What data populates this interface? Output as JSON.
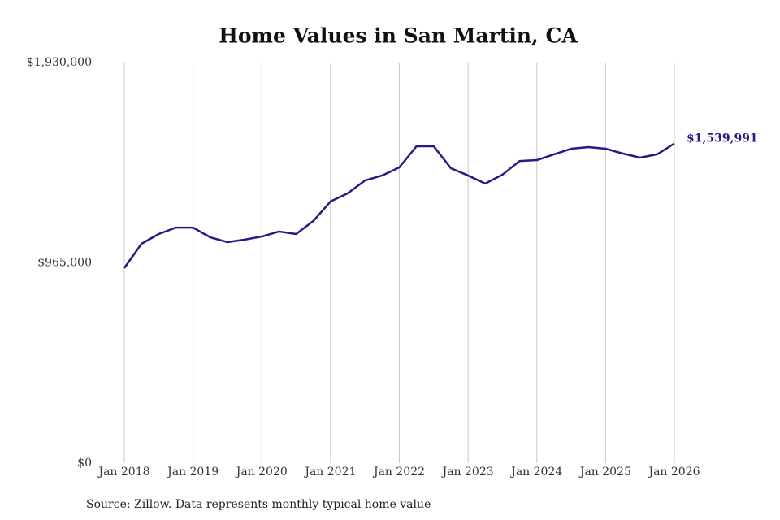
{
  "chart_data": {
    "type": "line",
    "title": "Home Values in San Martin, CA",
    "source": "Source: Zillow. Data represents monthly typical home value",
    "categories": [
      "Jan 2018",
      null,
      null,
      null,
      "Jan 2019",
      null,
      null,
      null,
      "Jan 2020",
      null,
      null,
      null,
      "Jan 2021",
      null,
      null,
      null,
      "Jan 2022",
      null,
      null,
      null,
      "Jan 2023",
      null,
      null,
      null,
      "Jan 2024",
      null,
      null,
      null,
      "Jan 2025",
      null,
      null,
      null,
      "Jan 2026"
    ],
    "series": [
      {
        "name": "Home value",
        "color": "#221c83",
        "values": [
          940000,
          1057000,
          1104000,
          1135000,
          1135000,
          1088000,
          1065000,
          1077000,
          1092000,
          1116000,
          1104000,
          1167000,
          1261000,
          1300000,
          1362000,
          1386000,
          1425000,
          1527000,
          1527000,
          1421000,
          1386000,
          1347000,
          1390000,
          1456000,
          1460000,
          1488000,
          1515000,
          1523000,
          1515000,
          1492000,
          1472000,
          1488000,
          1539991
        ],
        "value_labels": [
          null,
          null,
          null,
          null,
          null,
          null,
          null,
          null,
          null,
          null,
          null,
          null,
          null,
          null,
          null,
          null,
          null,
          null,
          null,
          null,
          null,
          null,
          null,
          null,
          null,
          null,
          null,
          null,
          null,
          null,
          null,
          null,
          "$1,539,991"
        ]
      }
    ],
    "ylim": [
      0,
      1930000
    ],
    "yticks": [
      {
        "value": 0,
        "label": "$0"
      },
      {
        "value": 965000,
        "label": "$965,000"
      },
      {
        "value": 1930000,
        "label": "$1,930,000"
      }
    ],
    "grid": "x"
  }
}
